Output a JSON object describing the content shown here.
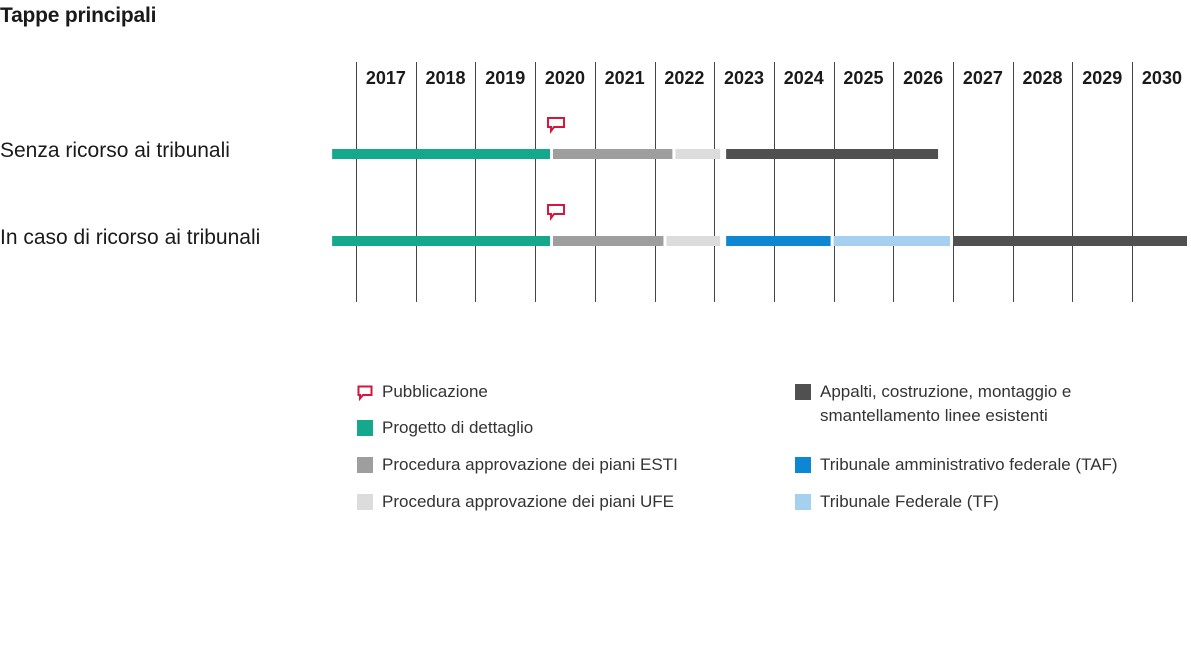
{
  "title": "Tappe principali",
  "colors": {
    "publication": "#d6163a",
    "progetto": "#14a98c",
    "esti": "#9e9e9e",
    "ufe": "#dcdcdc",
    "appalti": "#505050",
    "taf": "#0d87d4",
    "tf": "#a5d0ef"
  },
  "chart_data": {
    "type": "gantt",
    "title": "Tappe principali",
    "years": [
      "2017",
      "2018",
      "2019",
      "2020",
      "2021",
      "2022",
      "2023",
      "2024",
      "2025",
      "2026",
      "2027",
      "2028",
      "2029",
      "2030"
    ],
    "x_range": [
      2017,
      2031
    ],
    "rows": [
      {
        "label": "Senza ricorso ai tribunali",
        "publication": 2020.25,
        "bars": [
          {
            "phase": "progetto",
            "start": 2016.6,
            "end": 2020.25
          },
          {
            "phase": "esti",
            "start": 2020.3,
            "end": 2022.3
          },
          {
            "phase": "ufe",
            "start": 2022.35,
            "end": 2023.1
          },
          {
            "phase": "appalti",
            "start": 2023.2,
            "end": 2026.75
          }
        ]
      },
      {
        "label": "In caso di ricorso ai tribunali",
        "publication": 2020.25,
        "bars": [
          {
            "phase": "progetto",
            "start": 2016.6,
            "end": 2020.25
          },
          {
            "phase": "esti",
            "start": 2020.3,
            "end": 2022.15
          },
          {
            "phase": "ufe",
            "start": 2022.2,
            "end": 2023.1
          },
          {
            "phase": "taf",
            "start": 2023.2,
            "end": 2024.95
          },
          {
            "phase": "tf",
            "start": 2025.0,
            "end": 2026.95
          },
          {
            "phase": "appalti",
            "start": 2027.0,
            "end": 2030.92
          }
        ]
      }
    ]
  },
  "legend": {
    "publication": "Pubblicazione",
    "progetto": "Progetto di dettaglio",
    "esti": "Procedura approvazione dei piani ESTI",
    "ufe": "Procedura approvazione dei piani UFE",
    "appalti": "Appalti, costruzione, montaggio e smantellamento linee esistenti",
    "taf": "Tribunale amministrativo federale (TAF)",
    "tf": "Tribunale Federale (TF)"
  }
}
